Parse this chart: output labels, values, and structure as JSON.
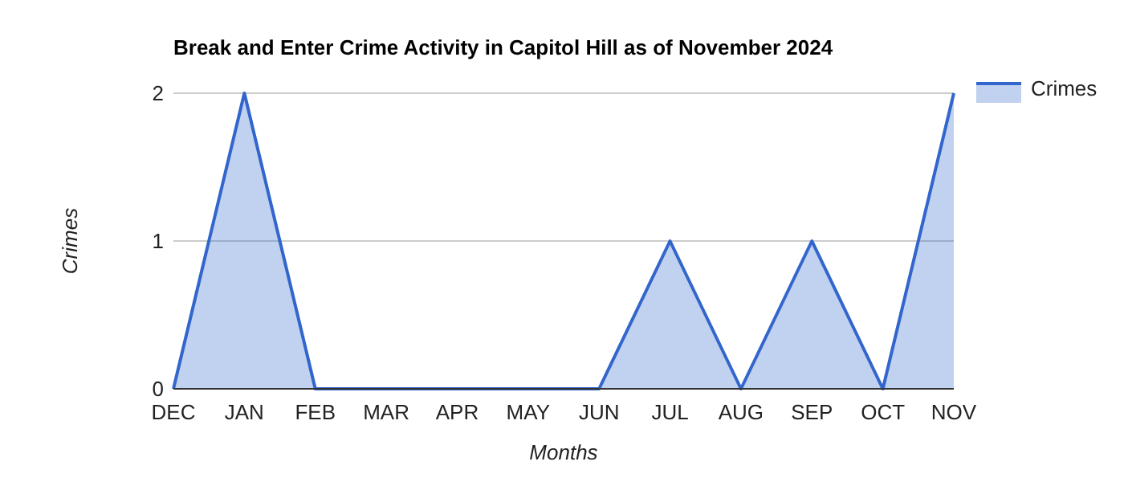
{
  "chart_data": {
    "type": "area",
    "title": "Break and Enter Crime Activity in Capitol Hill as of November 2024",
    "xlabel": "Months",
    "ylabel": "Crimes",
    "categories": [
      "DEC",
      "JAN",
      "FEB",
      "MAR",
      "APR",
      "MAY",
      "JUN",
      "JUL",
      "AUG",
      "SEP",
      "OCT",
      "NOV"
    ],
    "series": [
      {
        "name": "Crimes",
        "color": "#3366cc",
        "values": [
          0,
          2,
          0,
          0,
          0,
          0,
          0,
          1,
          0,
          1,
          0,
          2
        ]
      }
    ],
    "ylim": [
      0,
      2
    ],
    "yticks": [
      0,
      1,
      2
    ],
    "grid": "y",
    "legend": "top right"
  }
}
